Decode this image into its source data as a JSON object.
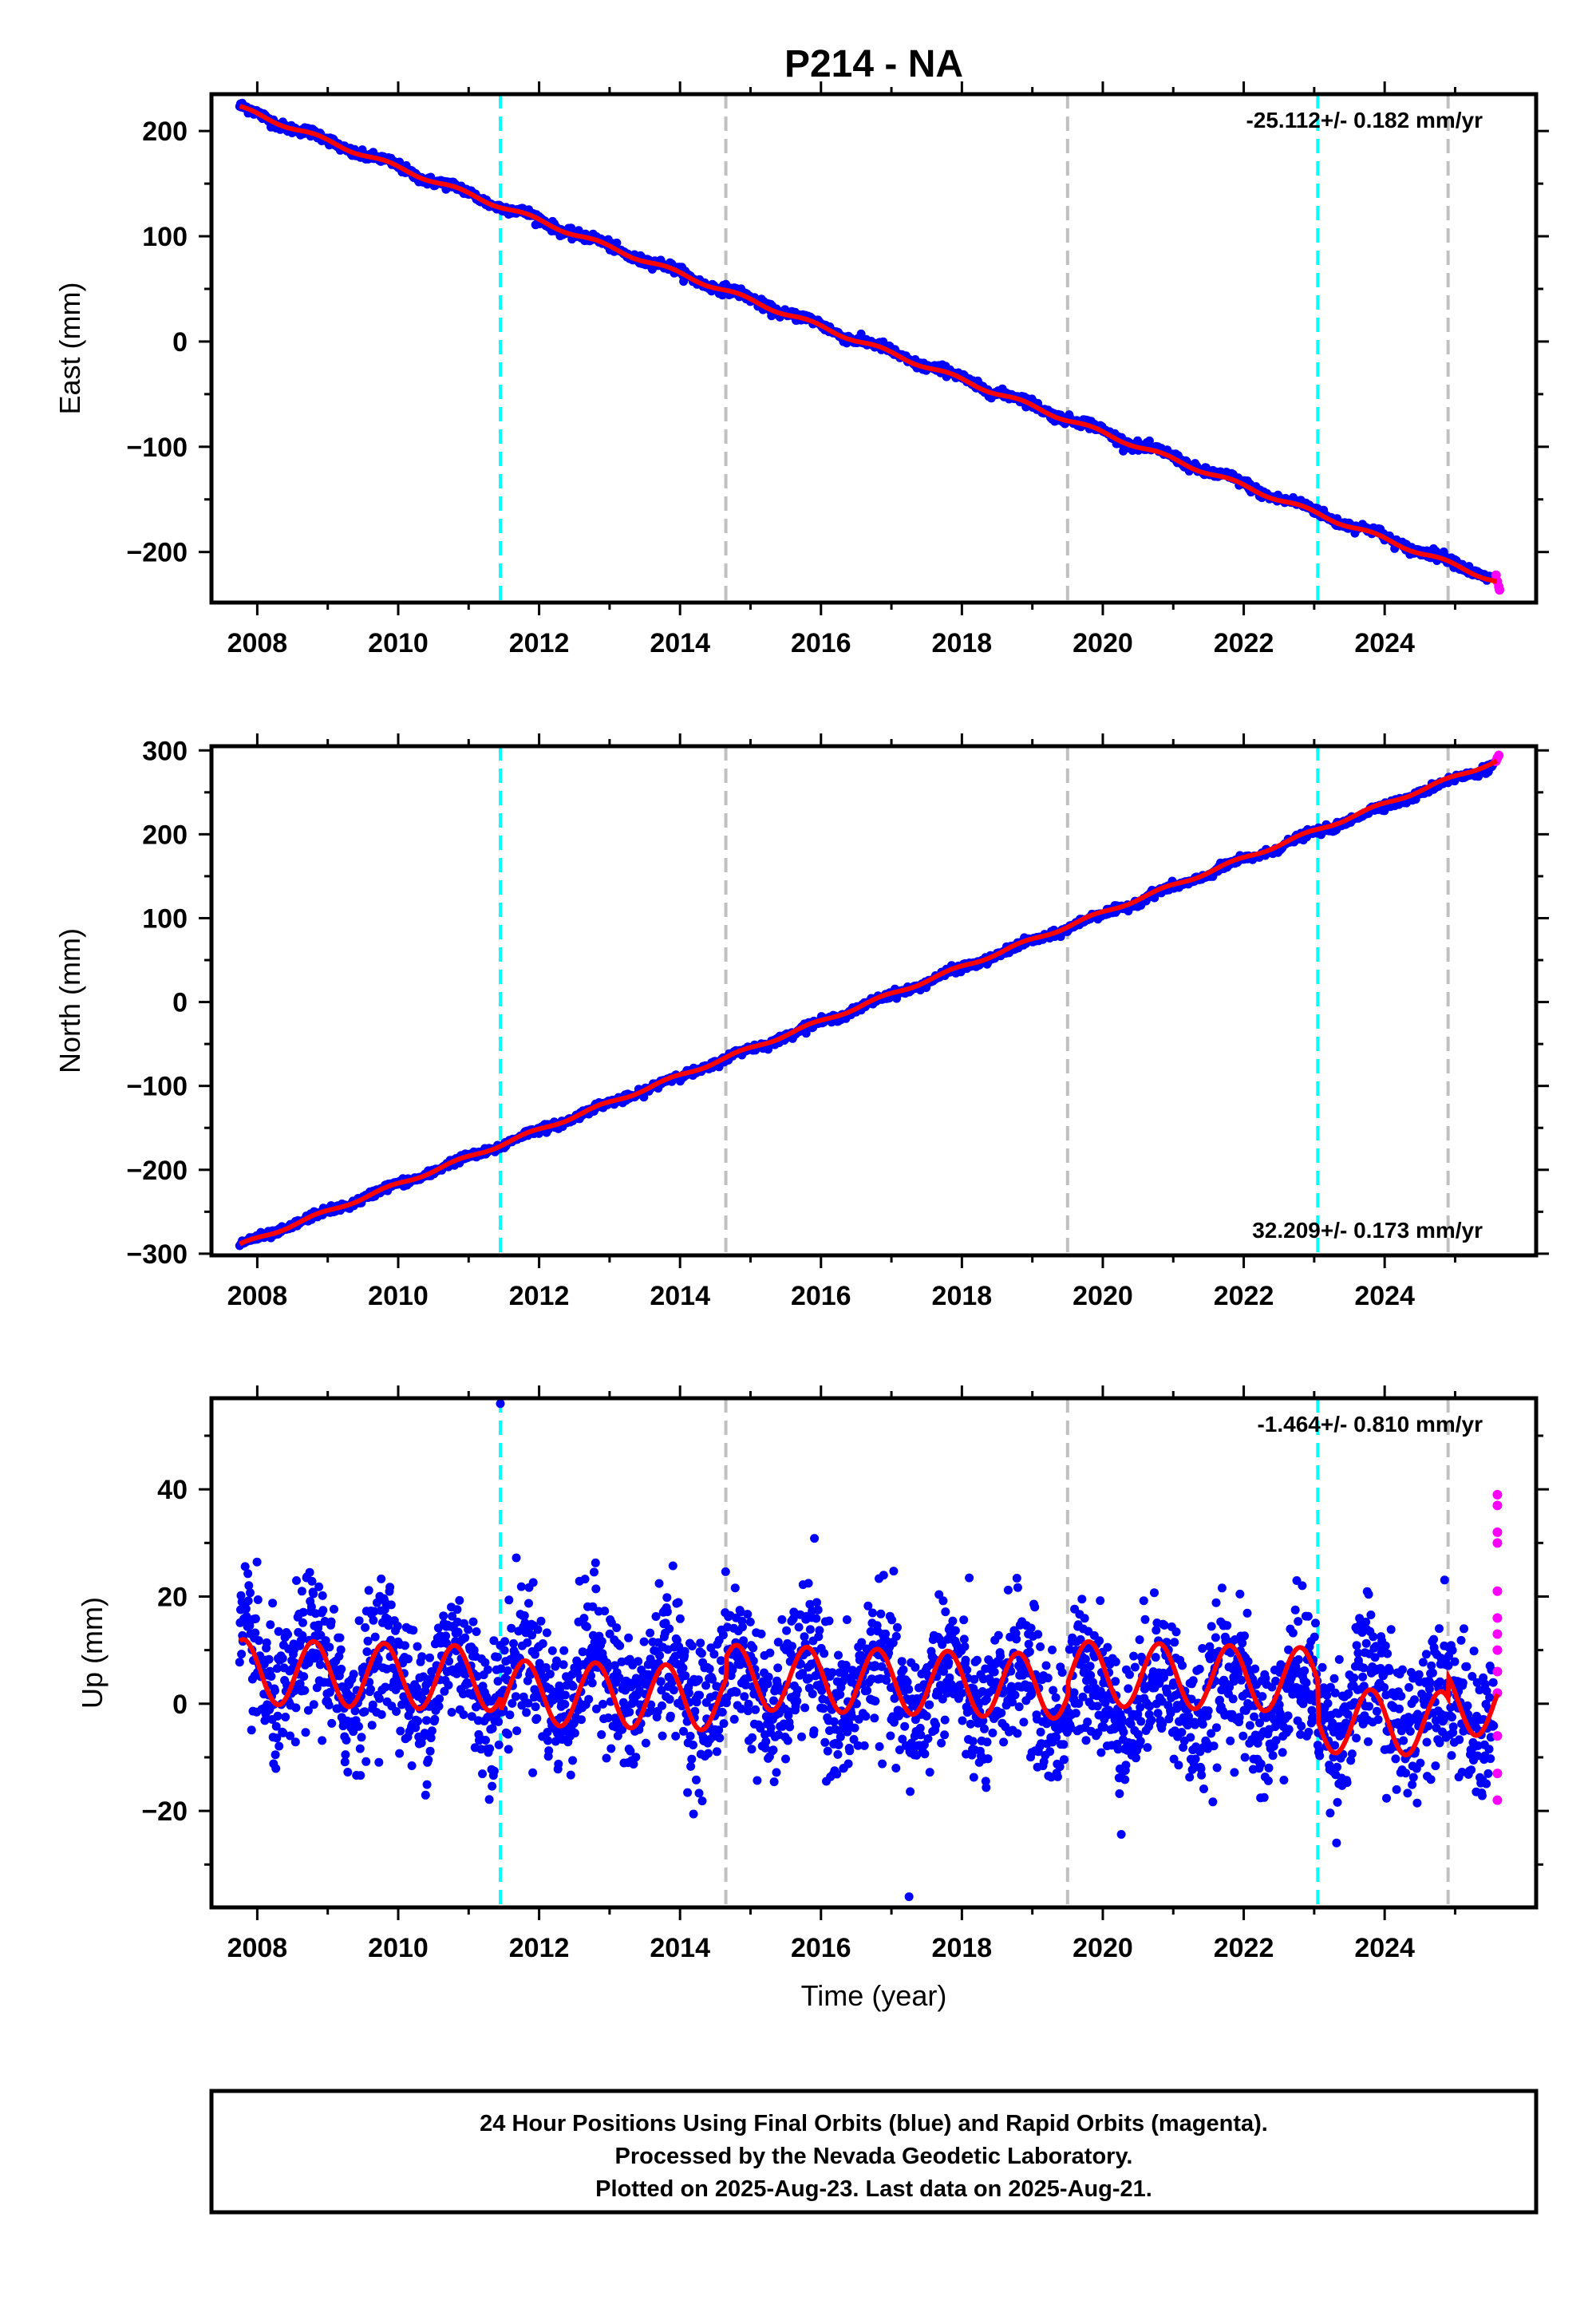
{
  "title": "P214 - NA",
  "colors": {
    "final_orbits": "#0000ff",
    "rapid_orbits": "#ff00ff",
    "model_fit": "#ff0000",
    "antenna_change": "#00ffff",
    "equipment_change": "#c0c0c0"
  },
  "footer": {
    "line1": "24 Hour Positions Using Final Orbits (blue) and Rapid Orbits (magenta).",
    "line2": "Processed by the Nevada Geodetic Laboratory.",
    "line3": "Plotted on 2025-Aug-23. Last data on 2025-Aug-21."
  },
  "chart_data": [
    {
      "type": "scatter",
      "component": "east",
      "ylabel": "East (mm)",
      "xlim": [
        2007.35,
        2026.15
      ],
      "ylim": [
        -248,
        235
      ],
      "x_ticks": [
        2008,
        2010,
        2012,
        2014,
        2016,
        2018,
        2020,
        2022,
        2024
      ],
      "y_ticks": [
        200,
        100,
        0,
        -100,
        -200
      ],
      "y_tick_labels": [
        "200",
        "100",
        "0",
        "−100",
        "−200"
      ],
      "rate_text": "-25.112+/- 0.182 mm/yr",
      "rate_position": "top-right",
      "fit_line": {
        "x": [
          2007.75,
          2025.6
        ],
        "y": [
          222,
          -228
        ]
      },
      "final_series_extent": {
        "x": [
          2007.75,
          2025.55
        ],
        "y_start": 222,
        "slope_mm_per_yr": -25.112
      },
      "rapid_points": {
        "x": [
          2025.58,
          2025.6,
          2025.62,
          2025.63
        ],
        "y": [
          -222,
          -228,
          -233,
          -236
        ]
      }
    },
    {
      "type": "scatter",
      "component": "north",
      "ylabel": "North (mm)",
      "xlim": [
        2007.35,
        2026.15
      ],
      "ylim": [
        -302,
        305
      ],
      "x_ticks": [
        2008,
        2010,
        2012,
        2014,
        2016,
        2018,
        2020,
        2022,
        2024
      ],
      "y_ticks": [
        300,
        200,
        100,
        0,
        -100,
        -200,
        -300
      ],
      "y_tick_labels": [
        "300",
        "200",
        "100",
        "0",
        "−100",
        "−200",
        "−300"
      ],
      "rate_text": "32.209+/- 0.173 mm/yr",
      "rate_position": "bottom-right",
      "fit_line": {
        "x": [
          2007.75,
          2025.6
        ],
        "y": [
          -290,
          288
        ]
      },
      "final_series_extent": {
        "x": [
          2007.75,
          2025.55
        ],
        "y_start": -290,
        "slope_mm_per_yr": 32.209
      },
      "rapid_points": {
        "x": [
          2025.58,
          2025.6,
          2025.62
        ],
        "y": [
          287,
          291,
          294
        ]
      }
    },
    {
      "type": "scatter",
      "component": "up",
      "ylabel": "Up (mm)",
      "xlabel": "Time (year)",
      "xlim": [
        2007.35,
        2026.15
      ],
      "ylim": [
        -38,
        57
      ],
      "x_ticks": [
        2008,
        2010,
        2012,
        2014,
        2016,
        2018,
        2020,
        2022,
        2024
      ],
      "y_ticks": [
        40,
        20,
        0,
        -20
      ],
      "y_tick_labels": [
        "40",
        "20",
        "0",
        "−20"
      ],
      "rate_text": "-1.464+/- 0.810 mm/yr",
      "rate_position": "top-right",
      "fit_model": {
        "seasonal_amplitude_mm": 6,
        "period_years": 1.0,
        "slope_mm_per_yr": -1.464
      },
      "final_scatter_spread_mm": 20,
      "outliers": {
        "x": [
          2011.45,
          2017.25
        ],
        "y": [
          56,
          -36
        ]
      },
      "rapid_points": {
        "x": [
          2025.6,
          2025.6,
          2025.6,
          2025.6,
          2025.6,
          2025.6,
          2025.6,
          2025.6,
          2025.6,
          2025.6,
          2025.6,
          2025.6,
          2025.6
        ],
        "y": [
          39,
          37,
          32,
          30,
          21,
          16,
          13,
          10,
          6,
          2,
          -6,
          -13,
          -18
        ]
      }
    }
  ],
  "events": [
    {
      "type": "antenna_change",
      "x": 2011.45
    },
    {
      "type": "equipment_change",
      "x": 2014.65
    },
    {
      "type": "equipment_change",
      "x": 2019.5
    },
    {
      "type": "antenna_change",
      "x": 2023.05
    },
    {
      "type": "equipment_change",
      "x": 2024.9
    }
  ]
}
